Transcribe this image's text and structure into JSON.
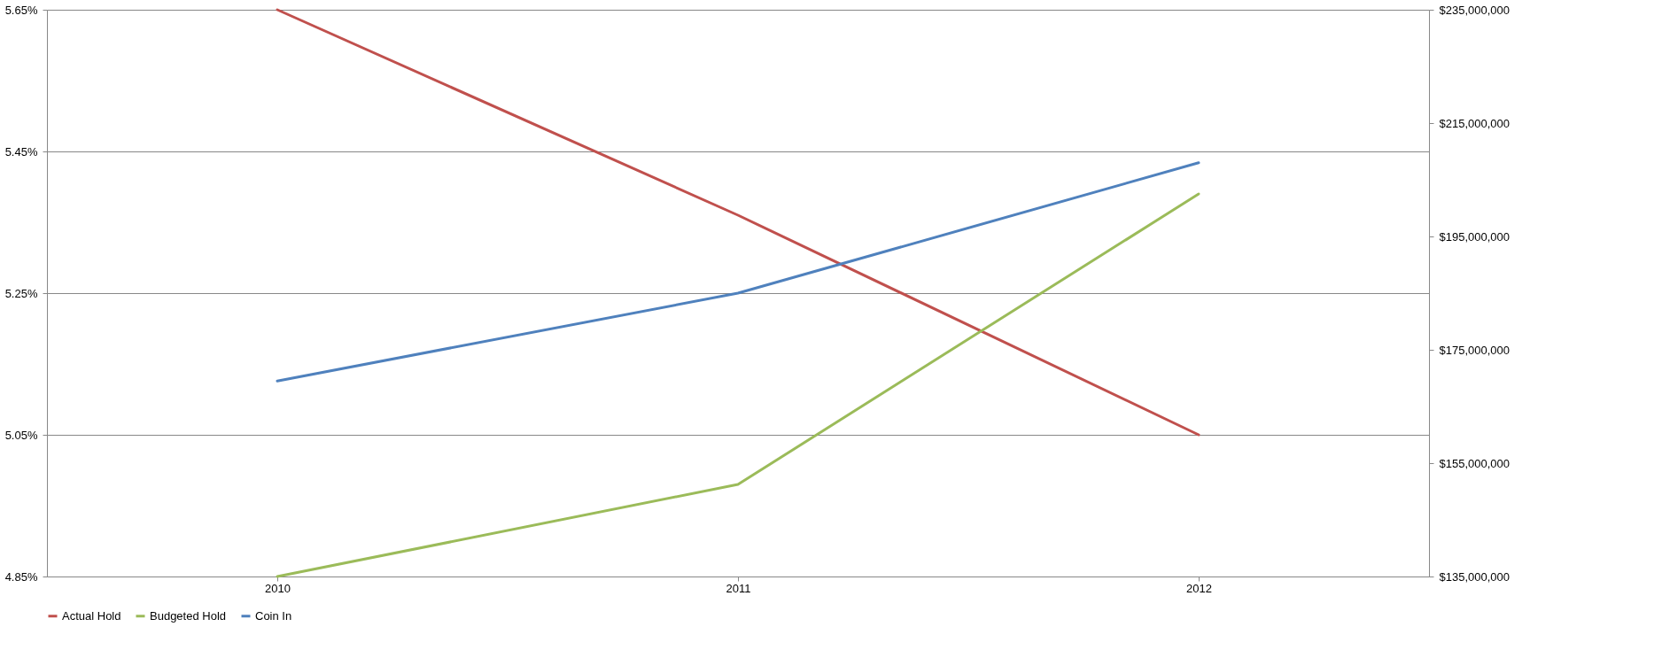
{
  "chart_data": {
    "type": "line",
    "categories": [
      "2010",
      "2011",
      "2012"
    ],
    "series": [
      {
        "name": "Actual Hold",
        "color": "#c0504d",
        "values": [
          5.65,
          5.36,
          5.05
        ]
      },
      {
        "name": "Budgeted Hold",
        "color": "#9bbb59",
        "values": [
          4.85,
          4.98,
          5.39
        ]
      },
      {
        "name": "Coin In",
        "color": "#4f81bd",
        "values": [
          169500000,
          185000000,
          208000000
        ],
        "axis": "y2"
      }
    ],
    "ylim": [
      4.85,
      5.65
    ],
    "yticks": [
      {
        "value": 4.85,
        "label": "4.85%"
      },
      {
        "value": 5.05,
        "label": "5.05%"
      },
      {
        "value": 5.25,
        "label": "5.25%"
      },
      {
        "value": 5.45,
        "label": "5.45%"
      },
      {
        "value": 5.65,
        "label": "5.65%"
      }
    ],
    "y2lim": [
      135000000,
      235000000
    ],
    "y2ticks": [
      {
        "value": 135000000,
        "label": "$135,000,000"
      },
      {
        "value": 155000000,
        "label": "$155,000,000"
      },
      {
        "value": 175000000,
        "label": "$175,000,000"
      },
      {
        "value": 195000000,
        "label": "$195,000,000"
      },
      {
        "value": 215000000,
        "label": "$215,000,000"
      },
      {
        "value": 235000000,
        "label": "$235,000,000"
      }
    ],
    "grid": "y",
    "legend": "bottom",
    "marker": "none",
    "line_style": "solid"
  }
}
